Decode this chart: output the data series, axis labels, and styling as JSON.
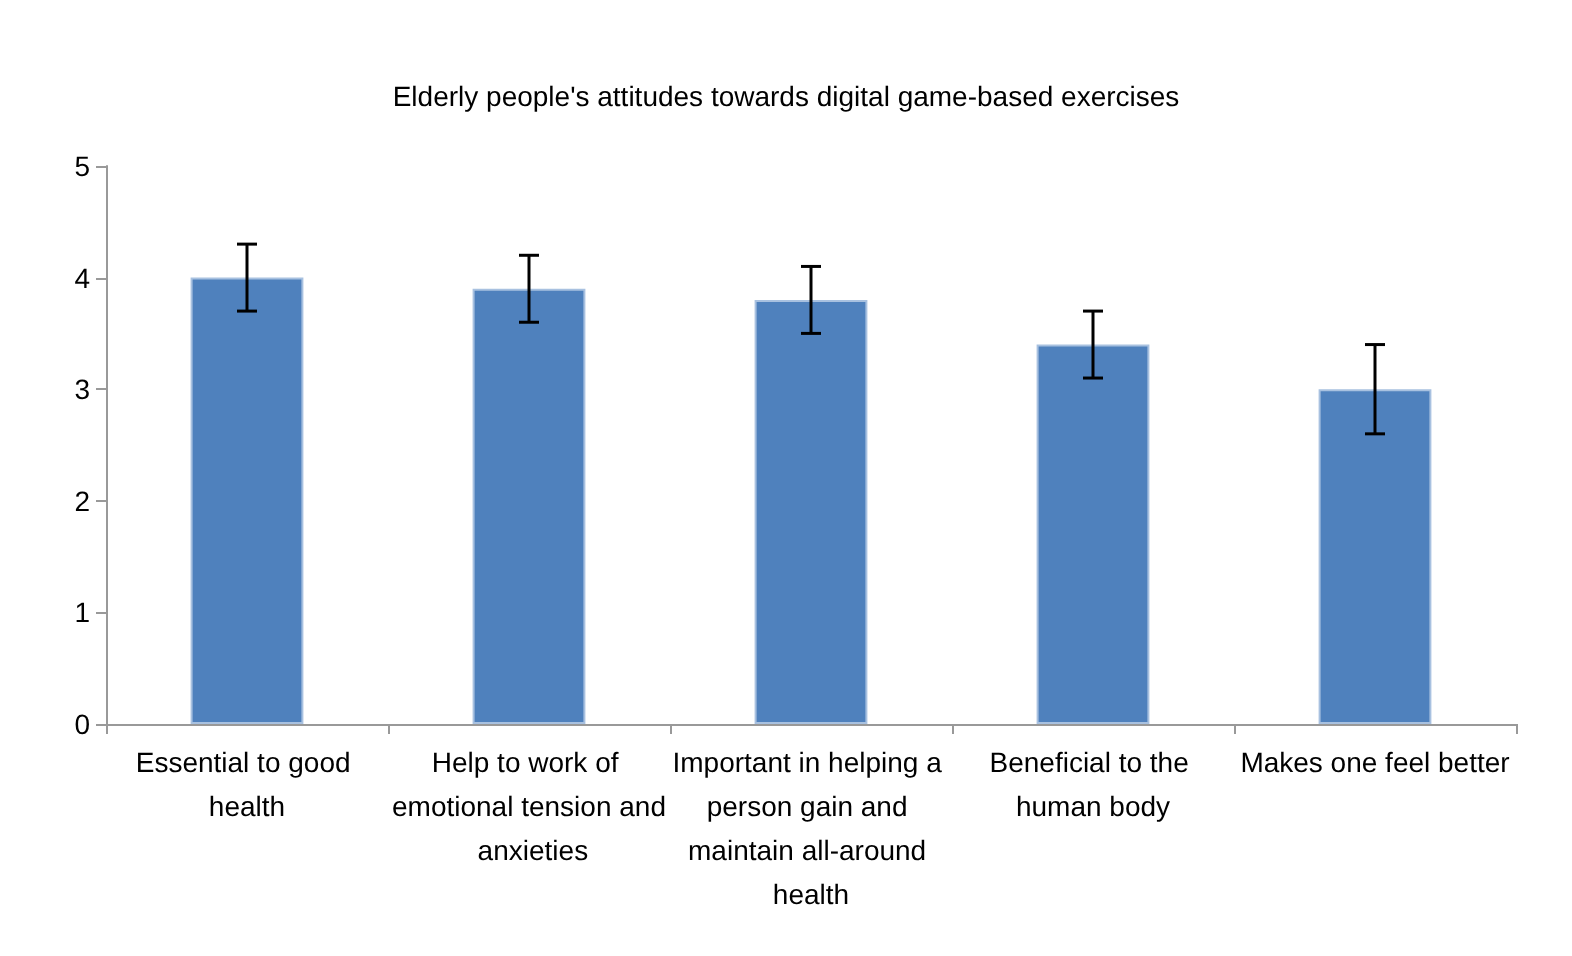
{
  "chart_data": {
    "type": "bar",
    "title": "Elderly people's attitudes towards digital game-based exercises",
    "categories": [
      "Essential to good health",
      "Help to work of emotional tension and anxieties",
      "Important in helping a person gain and maintain all-around health",
      "Beneficial to the human body",
      "Makes one feel better"
    ],
    "values": [
      4.0,
      3.9,
      3.8,
      3.4,
      3.0
    ],
    "errors": [
      0.3,
      0.3,
      0.3,
      0.3,
      0.4
    ],
    "color": "#4f81bd",
    "ylim": [
      0,
      5
    ],
    "yticks": [
      0,
      1,
      2,
      3,
      4,
      5
    ],
    "grid": false
  }
}
